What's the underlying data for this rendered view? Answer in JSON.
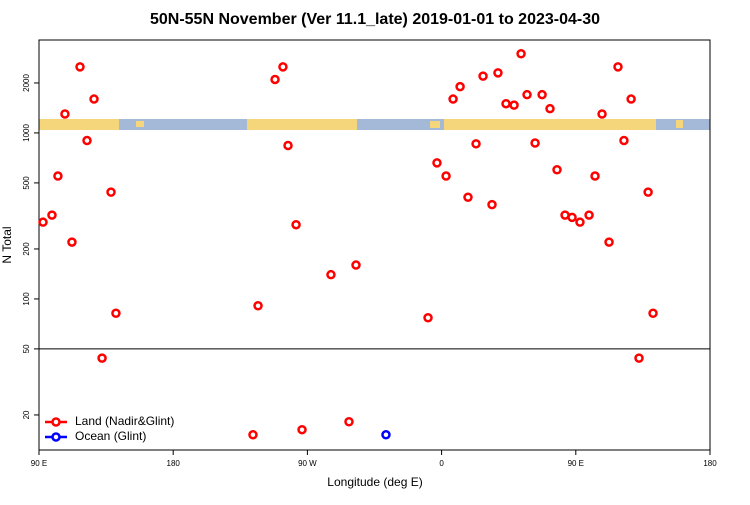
{
  "chart_data": {
    "type": "scatter",
    "title": "50N-55N November (Ver 11.1_late)   2019-01-01 to 2023-04-30",
    "x_label": "Longitude (deg E)",
    "y_label": "N Total",
    "xlim": [
      90,
      540
    ],
    "ylim": [
      12.3,
      3630
    ],
    "ylog": true,
    "xticks": [
      {
        "value": 90,
        "label": "90 E"
      },
      {
        "value": 180,
        "label": "180"
      },
      {
        "value": 270,
        "label": "90 W"
      },
      {
        "value": 360,
        "label": "0"
      },
      {
        "value": 450,
        "label": "90 E"
      },
      {
        "value": 540,
        "label": "180"
      }
    ],
    "yticks": [
      20,
      50,
      100,
      200,
      500,
      1000,
      2000
    ],
    "hline": 50,
    "legend": "bottom-left",
    "series": [
      {
        "name": "Land (Nadir&Glint)",
        "color": "#ff0000",
        "x": [
          92.7,
          98.7,
          102.7,
          107.4,
          112.1,
          117.5,
          122.2,
          126.9,
          132.3,
          138.3,
          141.6,
          233.5,
          236.9,
          248.3,
          253.6,
          257,
          262.4,
          266.4,
          285.8,
          297.9,
          302.6,
          350.9,
          356.9,
          363,
          367.7,
          372.4,
          377.7,
          383.1,
          387.8,
          393.8,
          397.8,
          403.2,
          408.6,
          413.3,
          417.3,
          422.7,
          427.4,
          432.7,
          437.4,
          442.8,
          447.5,
          452.8,
          458.9,
          462.9,
          467.6,
          472.3,
          478.3,
          482.3,
          487.1,
          492.4,
          498.5,
          501.8
        ],
        "values": [
          290,
          320,
          550,
          1300,
          220,
          2500,
          900,
          1600,
          44,
          440,
          82,
          15.2,
          91,
          2100,
          2500,
          840,
          280,
          16.3,
          140,
          18.2,
          160,
          77,
          660,
          550,
          1600,
          1900,
          410,
          860,
          2200,
          370,
          2300,
          1500,
          1470,
          3000,
          1700,
          870,
          1700,
          1400,
          600,
          320,
          310,
          290,
          320,
          550,
          1300,
          220,
          2500,
          900,
          1600,
          44,
          440,
          82
        ]
      },
      {
        "name": "Ocean (Glint)",
        "color": "#0000ff",
        "x": [
          322.7
        ],
        "values": [
          15.2
        ]
      }
    ]
  }
}
